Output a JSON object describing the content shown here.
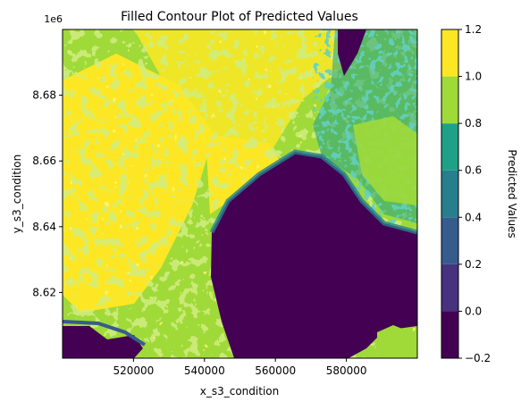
{
  "chart_data": {
    "type": "heatmap",
    "subtype": "filled-contour",
    "title": "Filled Contour Plot of Predicted Values",
    "xlabel": "x_s3_condition",
    "ylabel": "y_s3_condition",
    "y_offset_label": "1e6",
    "xlim": [
      500000,
      600000
    ],
    "ylim": [
      8.6,
      8.7
    ],
    "x_ticks": [
      {
        "value": 520000,
        "label": "520000"
      },
      {
        "value": 540000,
        "label": "540000"
      },
      {
        "value": 560000,
        "label": "560000"
      },
      {
        "value": 580000,
        "label": "580000"
      }
    ],
    "y_ticks": [
      {
        "value": 8.62,
        "label": "8.62"
      },
      {
        "value": 8.64,
        "label": "8.64"
      },
      {
        "value": 8.66,
        "label": "8.66"
      },
      {
        "value": 8.68,
        "label": "8.68"
      }
    ],
    "colorbar": {
      "label": "Predicted Values",
      "levels": [
        -0.2,
        0.0,
        0.2,
        0.4,
        0.6,
        0.8,
        1.0,
        1.2
      ],
      "tick_labels": [
        "−0.2",
        "0.0",
        "0.2",
        "0.4",
        "0.6",
        "0.8",
        "1.0",
        "1.2"
      ],
      "colors": [
        "#440154",
        "#46327e",
        "#365c8d",
        "#277f8e",
        "#1fa187",
        "#a0da39",
        "#fde725"
      ]
    },
    "regions_description_values": {
      "low_region_level": "-0.2 to 0.2",
      "high_region_level": "1.0 to 1.2",
      "mid_region_level": "0.8 to 1.0"
    }
  }
}
